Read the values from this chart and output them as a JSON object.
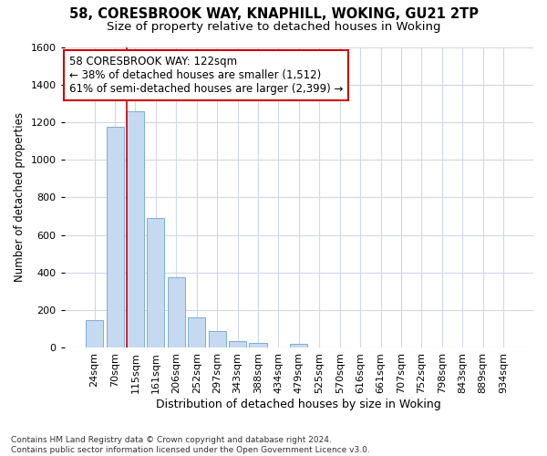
{
  "title1": "58, CORESBROOK WAY, KNAPHILL, WOKING, GU21 2TP",
  "title2": "Size of property relative to detached houses in Woking",
  "xlabel": "Distribution of detached houses by size in Woking",
  "ylabel": "Number of detached properties",
  "categories": [
    "24sqm",
    "70sqm",
    "115sqm",
    "161sqm",
    "206sqm",
    "252sqm",
    "297sqm",
    "343sqm",
    "388sqm",
    "434sqm",
    "479sqm",
    "525sqm",
    "570sqm",
    "616sqm",
    "661sqm",
    "707sqm",
    "752sqm",
    "798sqm",
    "843sqm",
    "889sqm",
    "934sqm"
  ],
  "values": [
    150,
    1175,
    1260,
    690,
    375,
    160,
    90,
    35,
    25,
    0,
    20,
    0,
    0,
    0,
    0,
    0,
    0,
    0,
    0,
    0,
    0
  ],
  "bar_color": "#c5d9f0",
  "bar_edge_color": "#7bafd4",
  "vline_color": "#cc0000",
  "annotation_text": "58 CORESBROOK WAY: 122sqm\n← 38% of detached houses are smaller (1,512)\n61% of semi-detached houses are larger (2,399) →",
  "annotation_box_color": "#ffffff",
  "annotation_box_edge": "#cc0000",
  "ylim": [
    0,
    1600
  ],
  "yticks": [
    0,
    200,
    400,
    600,
    800,
    1000,
    1200,
    1400,
    1600
  ],
  "grid_color": "#d0d8e8",
  "background_color": "#ffffff",
  "footer": "Contains HM Land Registry data © Crown copyright and database right 2024.\nContains public sector information licensed under the Open Government Licence v3.0.",
  "title1_fontsize": 10.5,
  "title2_fontsize": 9.5,
  "xlabel_fontsize": 9,
  "ylabel_fontsize": 8.5,
  "tick_fontsize": 8,
  "annotation_fontsize": 8.5,
  "footer_fontsize": 6.5
}
